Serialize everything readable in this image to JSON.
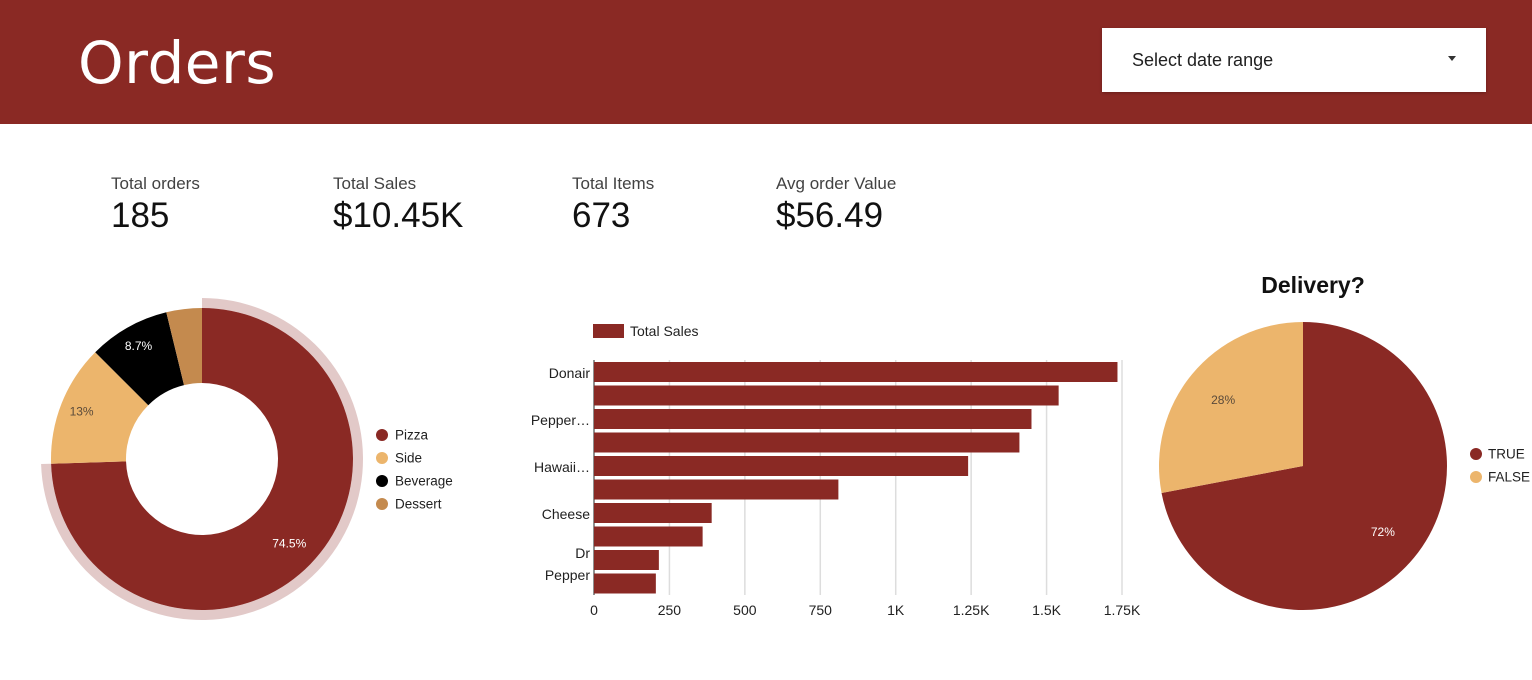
{
  "header": {
    "title": "Orders",
    "date_range": {
      "label": "Select date range",
      "icon": "chevron-down-icon"
    },
    "background": "#8a2924"
  },
  "kpis": [
    {
      "label": "Total orders",
      "value": "185"
    },
    {
      "label": "Total Sales",
      "value": "$10.45K"
    },
    {
      "label": "Total Items",
      "value": "673"
    },
    {
      "label": "Avg order Value",
      "value": "$56.49"
    }
  ],
  "chart_data": [
    {
      "type": "pie",
      "variant": "donut",
      "title": "",
      "legend_position": "right",
      "slices": [
        {
          "label": "Pizza",
          "value": 74.5,
          "display": "74.5%",
          "color": "#8a2924",
          "highlighted": true
        },
        {
          "label": "Side",
          "value": 13.0,
          "display": "13%",
          "color": "#ecb56c"
        },
        {
          "label": "Beverage",
          "value": 8.7,
          "display": "8.7%",
          "color": "#000000"
        },
        {
          "label": "Dessert",
          "value": 3.8,
          "display": "",
          "color": "#c48a4e"
        }
      ]
    },
    {
      "type": "bar",
      "orientation": "horizontal",
      "title": "",
      "legend_position": "top",
      "categories": [
        "Donair",
        "",
        "Pepper…",
        "",
        "Hawaii…",
        "",
        "Cheese",
        "",
        "Dr Pepper",
        ""
      ],
      "series": [
        {
          "name": "Total Sales",
          "color": "#8a2924",
          "values": [
            1735,
            1540,
            1450,
            1410,
            1240,
            810,
            390,
            360,
            215,
            205
          ]
        }
      ],
      "xlim": [
        0,
        1750
      ],
      "xticks": [
        "0",
        "250",
        "500",
        "750",
        "1K",
        "1.25K",
        "1.5K",
        "1.75K"
      ],
      "xtick_values": [
        0,
        250,
        500,
        750,
        1000,
        1250,
        1500,
        1750
      ],
      "grid": true
    },
    {
      "type": "pie",
      "title": "Delivery?",
      "legend_position": "right",
      "slices": [
        {
          "label": "TRUE",
          "value": 72,
          "display": "72%",
          "color": "#8a2924"
        },
        {
          "label": "FALSE",
          "value": 28,
          "display": "28%",
          "color": "#ecb56c"
        }
      ]
    }
  ]
}
